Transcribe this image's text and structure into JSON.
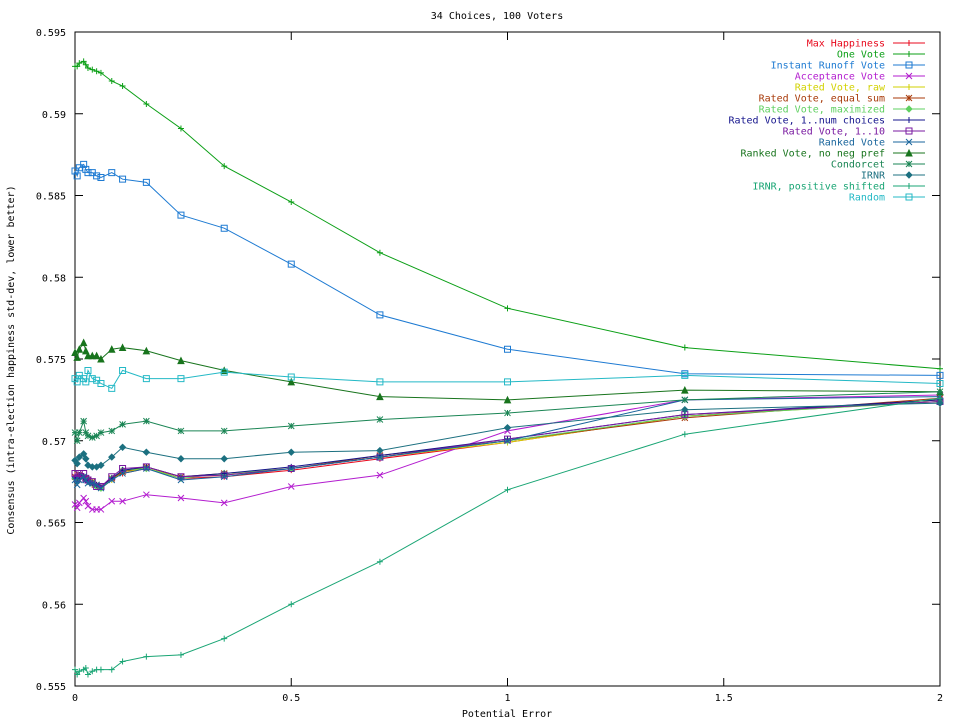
{
  "chart_data": {
    "type": "line",
    "title": "34 Choices, 100 Voters",
    "xlabel": "Potential Error",
    "ylabel": "Consensus (intra-election happiness std-dev, lower better)",
    "xlim": [
      0,
      2
    ],
    "ylim": [
      0.555,
      0.595
    ],
    "xticks": [
      0,
      0.5,
      1,
      1.5,
      2
    ],
    "yticks": [
      0.555,
      0.56,
      0.565,
      0.57,
      0.575,
      0.58,
      0.585,
      0.59,
      0.595
    ],
    "grid": false,
    "legend_position": "top-right",
    "x": [
      0,
      0.005,
      0.01,
      0.02,
      0.025,
      0.03,
      0.04,
      0.05,
      0.06,
      0.085,
      0.11,
      0.165,
      0.245,
      0.345,
      0.5,
      0.705,
      1.0,
      1.41,
      2.0
    ],
    "series": [
      {
        "name": "Max Happiness",
        "color": "#e8081c",
        "marker": "plus",
        "values": [
          0.5679,
          0.5677,
          0.5679,
          0.5678,
          0.5676,
          0.5675,
          0.5673,
          0.5672,
          0.5671,
          0.5677,
          0.568,
          0.5683,
          0.5677,
          0.5678,
          0.5682,
          0.5689,
          0.5699,
          0.5715,
          0.5725
        ]
      },
      {
        "name": "One Vote",
        "color": "#0b9f16",
        "marker": "plus",
        "values": [
          0.5929,
          0.5929,
          0.5931,
          0.5932,
          0.593,
          0.5928,
          0.5927,
          0.5926,
          0.5925,
          0.592,
          0.5917,
          0.5906,
          0.5891,
          0.5868,
          0.5846,
          0.5815,
          0.5781,
          0.5757,
          0.5744
        ]
      },
      {
        "name": "Instant Runoff Vote",
        "color": "#1d7ad2",
        "marker": "square",
        "values": [
          0.5865,
          0.5862,
          0.5867,
          0.5869,
          0.5866,
          0.5864,
          0.5864,
          0.5862,
          0.5861,
          0.5864,
          0.586,
          0.5858,
          0.5838,
          0.583,
          0.5808,
          0.5777,
          0.5756,
          0.5741,
          0.574
        ]
      },
      {
        "name": "Acceptance Vote",
        "color": "#b31dcf",
        "marker": "x",
        "values": [
          0.5661,
          0.5659,
          0.5662,
          0.5665,
          0.5663,
          0.566,
          0.5658,
          0.5658,
          0.5658,
          0.5663,
          0.5663,
          0.5667,
          0.5665,
          0.5662,
          0.5672,
          0.5679,
          0.5706,
          0.5725,
          0.5728
        ]
      },
      {
        "name": "Rated Vote, raw",
        "color": "#d2d200",
        "marker": "plus",
        "values": [
          0.5677,
          0.5675,
          0.5678,
          0.5677,
          0.5676,
          0.5675,
          0.5674,
          0.5673,
          0.5671,
          0.5676,
          0.5681,
          0.5683,
          0.5678,
          0.5679,
          0.5683,
          0.569,
          0.5699,
          0.5715,
          0.5724
        ]
      },
      {
        "name": "Rated Vote, equal sum",
        "color": "#a83a0a",
        "marker": "star",
        "values": [
          0.5678,
          0.5676,
          0.5679,
          0.5678,
          0.5677,
          0.5676,
          0.5675,
          0.5673,
          0.5672,
          0.5677,
          0.5681,
          0.5684,
          0.5678,
          0.568,
          0.5683,
          0.5691,
          0.57,
          0.5714,
          0.5726
        ]
      },
      {
        "name": "Rated Vote, maximized",
        "color": "#5fd060",
        "marker": "diamond",
        "values": [
          0.5677,
          0.5675,
          0.5678,
          0.5678,
          0.5676,
          0.5675,
          0.5674,
          0.5672,
          0.5671,
          0.5677,
          0.5682,
          0.5683,
          0.5677,
          0.568,
          0.5683,
          0.569,
          0.57,
          0.5715,
          0.5724
        ]
      },
      {
        "name": "Rated Vote, 1..num choices",
        "color": "#14148c",
        "marker": "plus",
        "values": [
          0.5678,
          0.5677,
          0.5679,
          0.5678,
          0.5676,
          0.5675,
          0.5674,
          0.5673,
          0.5672,
          0.5677,
          0.5682,
          0.5684,
          0.5678,
          0.568,
          0.5684,
          0.5691,
          0.5701,
          0.5716,
          0.5725
        ]
      },
      {
        "name": "Rated Vote, 1..10",
        "color": "#791aa0",
        "marker": "square",
        "values": [
          0.568,
          0.5677,
          0.568,
          0.568,
          0.5677,
          0.5676,
          0.5675,
          0.5672,
          0.5672,
          0.5678,
          0.5683,
          0.5684,
          0.5678,
          0.5679,
          0.5683,
          0.569,
          0.5701,
          0.5716,
          0.5724
        ]
      },
      {
        "name": "Ranked Vote",
        "color": "#19659c",
        "marker": "x",
        "values": [
          0.5676,
          0.5673,
          0.5676,
          0.5678,
          0.5676,
          0.5674,
          0.5674,
          0.5673,
          0.5671,
          0.5676,
          0.568,
          0.5683,
          0.5676,
          0.5678,
          0.5683,
          0.569,
          0.57,
          0.5725,
          0.5727
        ]
      },
      {
        "name": "Ranked Vote, no neg pref",
        "color": "#18741d",
        "marker": "triangle",
        "values": [
          0.5754,
          0.5751,
          0.5756,
          0.576,
          0.5755,
          0.5752,
          0.5752,
          0.5752,
          0.575,
          0.5756,
          0.5757,
          0.5755,
          0.5749,
          0.5743,
          0.5736,
          0.5727,
          0.5725,
          0.5731,
          0.573
        ]
      },
      {
        "name": "Condorcet",
        "color": "#1a8554",
        "marker": "star",
        "values": [
          0.5705,
          0.57,
          0.5705,
          0.5712,
          0.5705,
          0.5703,
          0.5702,
          0.5703,
          0.5705,
          0.5706,
          0.571,
          0.5712,
          0.5706,
          0.5706,
          0.5709,
          0.5713,
          0.5717,
          0.5725,
          0.573
        ]
      },
      {
        "name": "IRNR",
        "color": "#1c7080",
        "marker": "diamond",
        "values": [
          0.5688,
          0.5686,
          0.569,
          0.5692,
          0.5689,
          0.5685,
          0.5684,
          0.5684,
          0.5685,
          0.569,
          0.5696,
          0.5693,
          0.5689,
          0.5689,
          0.5693,
          0.5694,
          0.5708,
          0.5719,
          0.5723
        ]
      },
      {
        "name": "IRNR, positive shifted",
        "color": "#19a574",
        "marker": "plus",
        "values": [
          0.556,
          0.5557,
          0.5559,
          0.556,
          0.5561,
          0.5557,
          0.5559,
          0.556,
          0.556,
          0.556,
          0.5565,
          0.5568,
          0.5569,
          0.5579,
          0.56,
          0.5626,
          0.567,
          0.5704,
          0.5726
        ]
      },
      {
        "name": "Random",
        "color": "#24b9c6",
        "marker": "square",
        "values": [
          0.5738,
          0.5736,
          0.574,
          0.5738,
          0.5736,
          0.5743,
          0.5738,
          0.5737,
          0.5735,
          0.5732,
          0.5743,
          0.5738,
          0.5738,
          0.5742,
          0.5739,
          0.5736,
          0.5736,
          0.574,
          0.5735
        ]
      }
    ]
  }
}
